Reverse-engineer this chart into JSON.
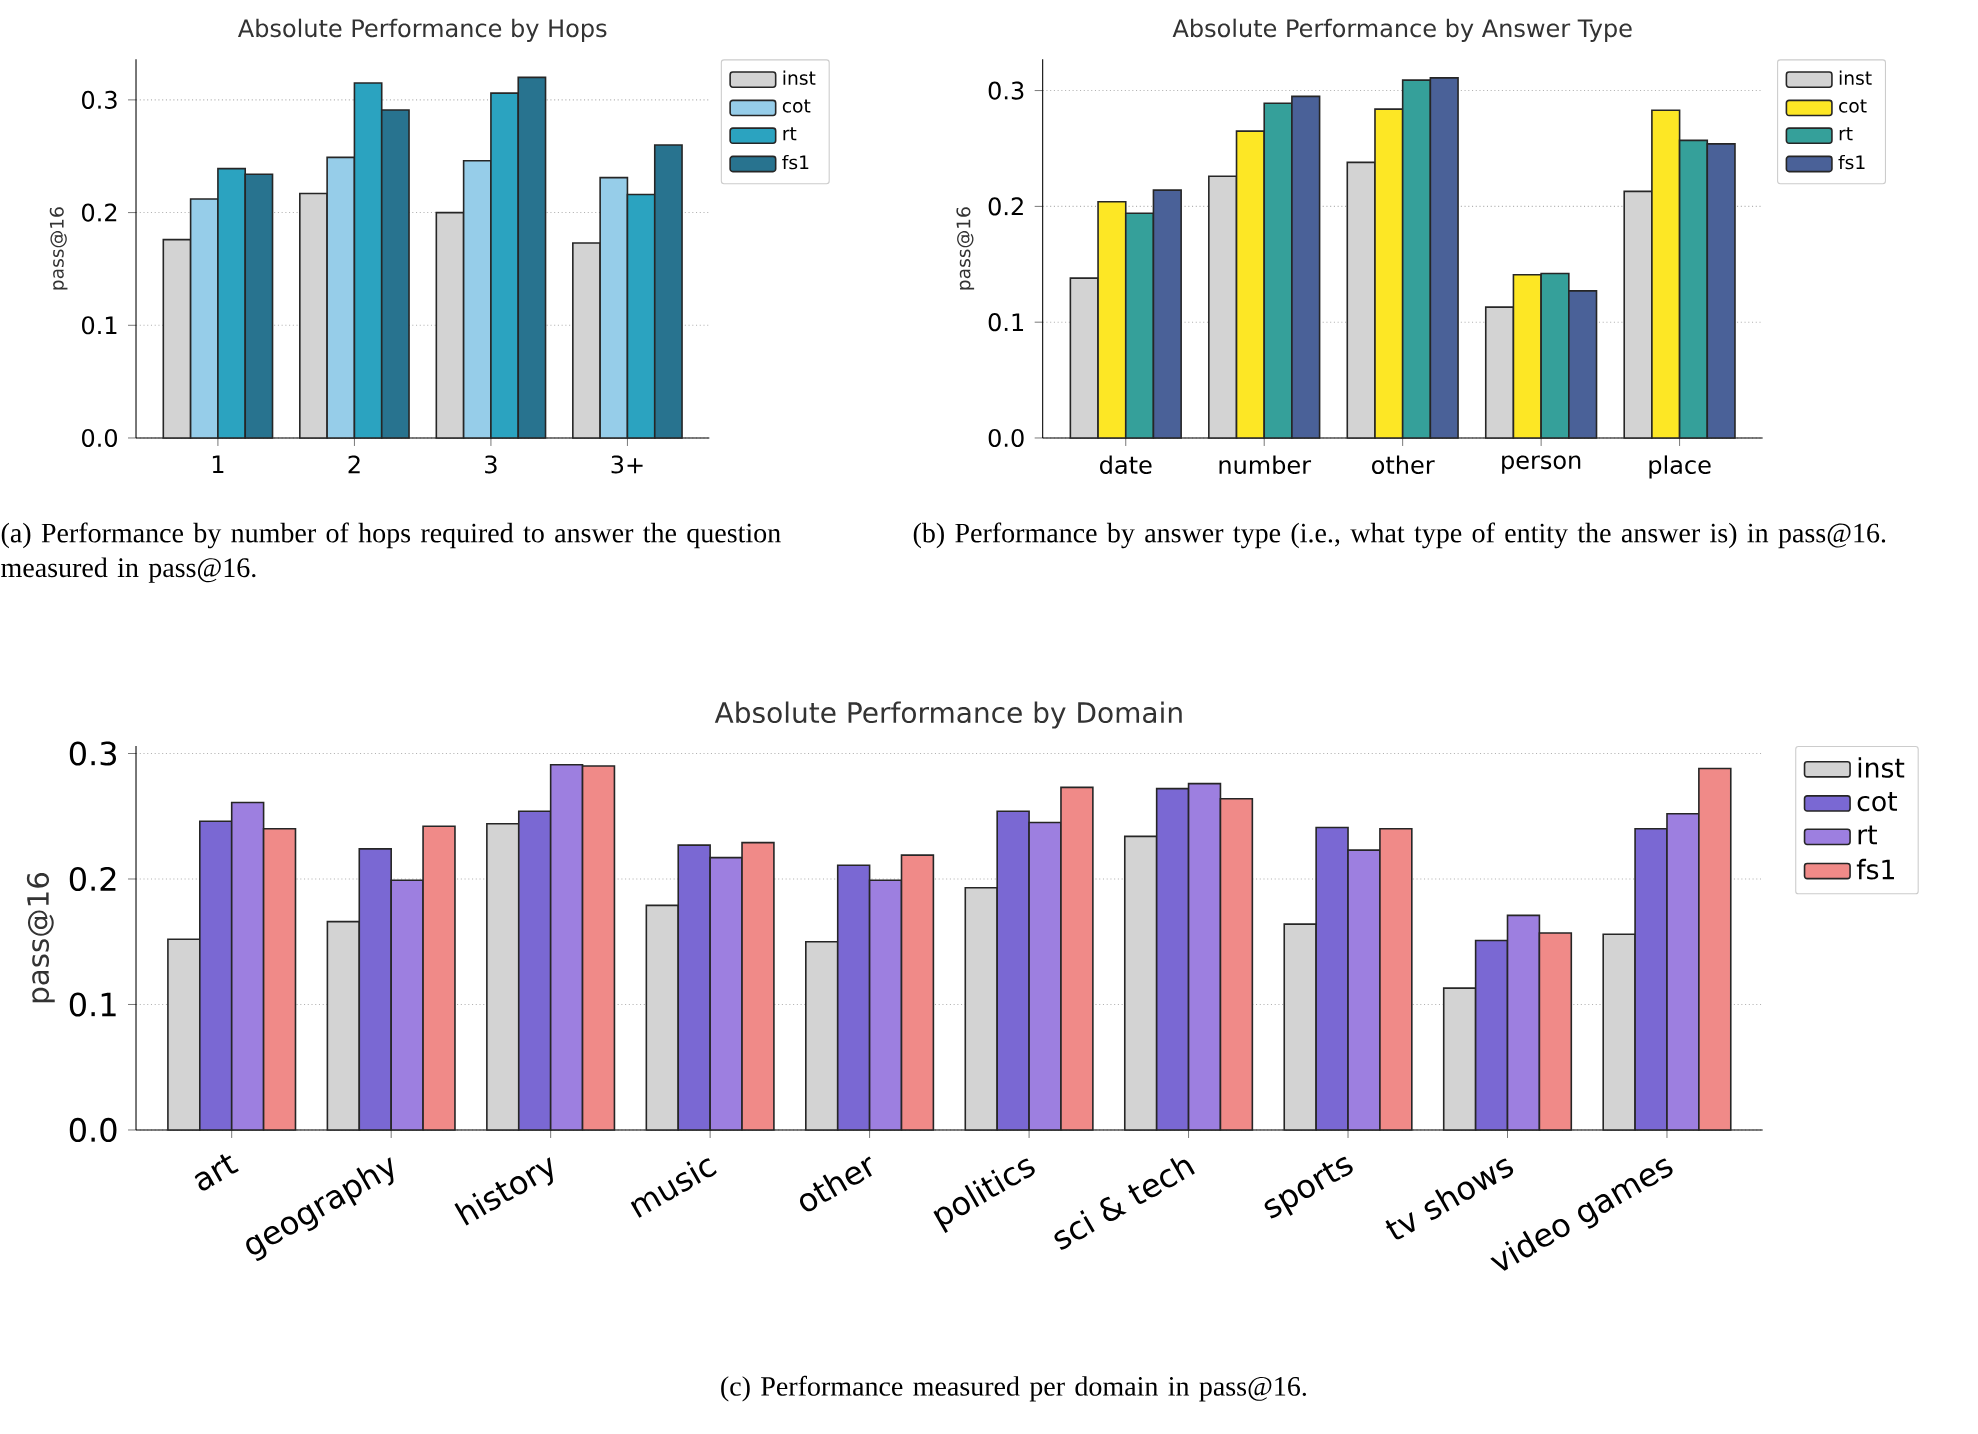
{
  "chart_data": [
    {
      "type": "bar",
      "title": "Absolute Performance by Hops",
      "ylabel": "pass@16",
      "categories": [
        "1",
        "2",
        "3",
        "3+"
      ],
      "series": [
        {
          "name": "inst",
          "color": "#d3d3d3",
          "values": [
            0.176,
            0.217,
            0.2,
            0.173
          ]
        },
        {
          "name": "cot",
          "color": "#96cde9",
          "values": [
            0.212,
            0.249,
            0.246,
            0.231
          ]
        },
        {
          "name": "rt",
          "color": "#2ba3c0",
          "values": [
            0.239,
            0.315,
            0.306,
            0.216
          ]
        },
        {
          "name": "fs1",
          "color": "#28738f",
          "values": [
            0.234,
            0.291,
            0.32,
            0.26
          ]
        }
      ],
      "ylim": [
        0,
        0.336
      ],
      "yticks": [
        {
          "value": 0,
          "label": "0.0"
        },
        {
          "value": 0.1,
          "label": "0.1"
        },
        {
          "value": 0.2,
          "label": "0.2"
        },
        {
          "value": 0.3,
          "label": "0.3"
        }
      ],
      "grid": "y",
      "legend": "right",
      "annotations": [
        "(a) Performance by number of hops required to answer the question measured in pass@16."
      ]
    },
    {
      "type": "bar",
      "title": "Absolute Performance by Answer Type",
      "ylabel": "pass@16",
      "categories": [
        "date",
        "number",
        "other",
        "person",
        "place"
      ],
      "series": [
        {
          "name": "inst",
          "color": "#d3d3d3",
          "values": [
            0.138,
            0.226,
            0.238,
            0.113,
            0.213
          ]
        },
        {
          "name": "cot",
          "color": "#fde725",
          "values": [
            0.204,
            0.265,
            0.284,
            0.141,
            0.283
          ]
        },
        {
          "name": "rt",
          "color": "#35a09a",
          "values": [
            0.194,
            0.289,
            0.309,
            0.142,
            0.257
          ]
        },
        {
          "name": "fs1",
          "color": "#4a6198",
          "values": [
            0.214,
            0.295,
            0.311,
            0.127,
            0.254
          ]
        }
      ],
      "ylim": [
        0,
        0.327
      ],
      "yticks": [
        {
          "value": 0,
          "label": "0.0"
        },
        {
          "value": 0.1,
          "label": "0.1"
        },
        {
          "value": 0.2,
          "label": "0.2"
        },
        {
          "value": 0.3,
          "label": "0.3"
        }
      ],
      "grid": "y",
      "legend": "right",
      "annotations": [
        "(b) Performance by answer type (i.e., what type of entity the answer is) in pass@16."
      ]
    },
    {
      "type": "bar",
      "title": "Absolute Performance by Domain",
      "ylabel": "pass@16",
      "categories": [
        "art",
        "geography",
        "history",
        "music",
        "other",
        "politics",
        "sci & tech",
        "sports",
        "tv shows",
        "video games"
      ],
      "series": [
        {
          "name": "inst",
          "color": "#d3d3d3",
          "values": [
            0.152,
            0.166,
            0.244,
            0.179,
            0.15,
            0.193,
            0.234,
            0.164,
            0.113,
            0.156
          ]
        },
        {
          "name": "cot",
          "color": "#7a68d3",
          "values": [
            0.246,
            0.224,
            0.254,
            0.227,
            0.211,
            0.254,
            0.272,
            0.241,
            0.151,
            0.24
          ]
        },
        {
          "name": "rt",
          "color": "#9d7fe0",
          "values": [
            0.261,
            0.199,
            0.291,
            0.217,
            0.199,
            0.245,
            0.276,
            0.223,
            0.171,
            0.252
          ]
        },
        {
          "name": "fs1",
          "color": "#f08a88",
          "values": [
            0.24,
            0.242,
            0.29,
            0.229,
            0.219,
            0.273,
            0.264,
            0.24,
            0.157,
            0.288
          ]
        }
      ],
      "ylim": [
        0,
        0.306
      ],
      "yticks": [
        {
          "value": 0,
          "label": "0.0"
        },
        {
          "value": 0.1,
          "label": "0.1"
        },
        {
          "value": 0.2,
          "label": "0.2"
        },
        {
          "value": 0.3,
          "label": "0.3"
        }
      ],
      "grid": "y",
      "legend": "right",
      "annotations": [
        "(c) Performance measured per domain in pass@16."
      ]
    }
  ]
}
